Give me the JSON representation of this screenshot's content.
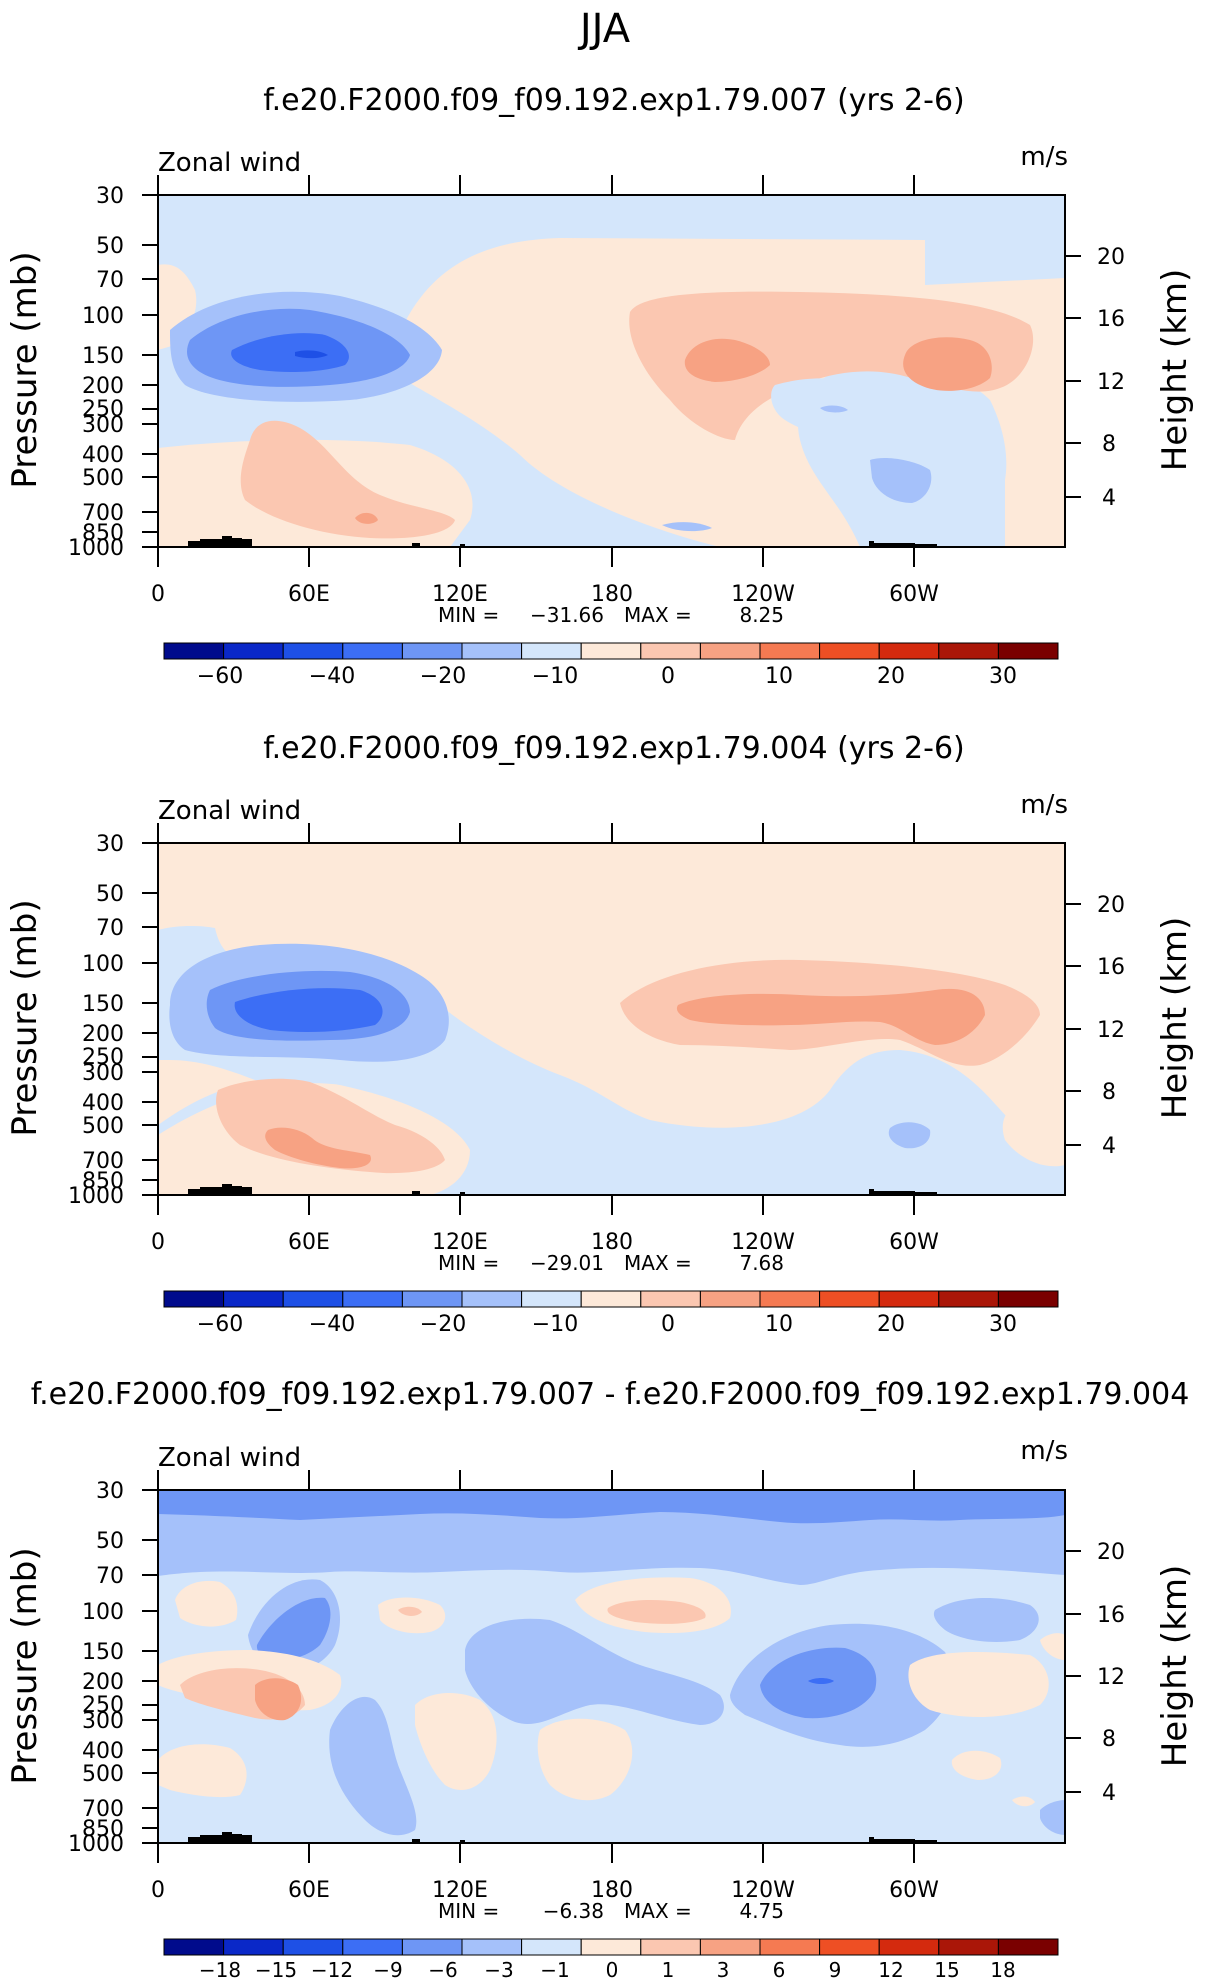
{
  "page_title": "JJA",
  "chart_data": [
    {
      "type": "contour",
      "title": "f.e20.F2000.f09_f09.192.exp1.79.007 (yrs 2-6)",
      "variable": "Zonal wind",
      "units": "m/s",
      "ylabel_left": "Pressure (mb)",
      "ylabel_right": "Height (km)",
      "pressure_ticks": [
        30,
        50,
        70,
        100,
        150,
        200,
        250,
        300,
        400,
        500,
        700,
        850,
        1000
      ],
      "height_ticks": [
        20,
        16,
        12,
        8,
        4
      ],
      "x_ticks": [
        "0",
        "60E",
        "120E",
        "180",
        "120W",
        "60W"
      ],
      "min_label": "MIN =",
      "min": "−31.66",
      "max_label": "MAX =",
      "max": "8.25",
      "colorbar_levels": [
        "−60",
        "−40",
        "−20",
        "−10",
        "0",
        "10",
        "20",
        "30"
      ]
    },
    {
      "type": "contour",
      "title": "f.e20.F2000.f09_f09.192.exp1.79.004 (yrs 2-6)",
      "variable": "Zonal wind",
      "units": "m/s",
      "ylabel_left": "Pressure (mb)",
      "ylabel_right": "Height (km)",
      "pressure_ticks": [
        30,
        50,
        70,
        100,
        150,
        200,
        250,
        300,
        400,
        500,
        700,
        850,
        1000
      ],
      "height_ticks": [
        20,
        16,
        12,
        8,
        4
      ],
      "x_ticks": [
        "0",
        "60E",
        "120E",
        "180",
        "120W",
        "60W"
      ],
      "min_label": "MIN =",
      "min": "−29.01",
      "max_label": "MAX =",
      "max": "7.68",
      "colorbar_levels": [
        "−60",
        "−40",
        "−20",
        "−10",
        "0",
        "10",
        "20",
        "30"
      ]
    },
    {
      "type": "contour",
      "title": "f.e20.F2000.f09_f09.192.exp1.79.007 - f.e20.F2000.f09_f09.192.exp1.79.004",
      "variable": "Zonal wind",
      "units": "m/s",
      "ylabel_left": "Pressure (mb)",
      "ylabel_right": "Height (km)",
      "pressure_ticks": [
        30,
        50,
        70,
        100,
        150,
        200,
        250,
        300,
        400,
        500,
        700,
        850,
        1000
      ],
      "height_ticks": [
        20,
        16,
        12,
        8,
        4
      ],
      "x_ticks": [
        "0",
        "60E",
        "120E",
        "180",
        "120W",
        "60W"
      ],
      "min_label": "MIN =",
      "min": "−6.38",
      "max_label": "MAX =",
      "max": "4.75",
      "colorbar_levels": [
        "−18",
        "−15",
        "−12",
        "−9",
        "−6",
        "−3",
        "−1",
        "0",
        "1",
        "3",
        "6",
        "9",
        "12",
        "15",
        "18"
      ]
    }
  ],
  "colors": {
    "palette": [
      "#000b8c",
      "#0a28c8",
      "#1e50e6",
      "#3c6ef5",
      "#6e96f5",
      "#a5c1fa",
      "#d4e6fb",
      "#fde9d9",
      "#fbc7b1",
      "#f7a283",
      "#f57a52",
      "#ee4f24",
      "#d42a0e",
      "#aa1608",
      "#7a0000"
    ],
    "topography": "#000000"
  }
}
